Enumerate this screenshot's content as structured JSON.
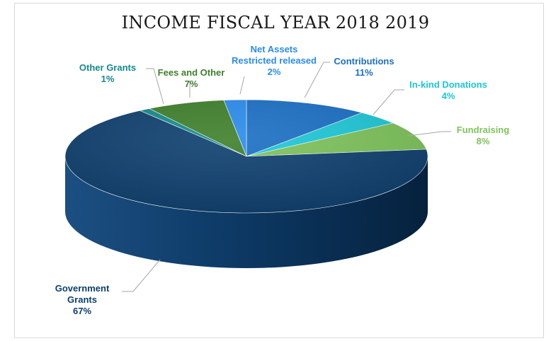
{
  "chart_data": {
    "type": "pie",
    "title": "INCOME FISCAL YEAR 2018 2019",
    "slices": [
      {
        "name": "Contributions",
        "value": 11,
        "label": "11%",
        "color": "#1a6fc4",
        "label_color": "#1a6fc4"
      },
      {
        "name": "In-kind Donations",
        "value": 4,
        "label": "4%",
        "color": "#1dc8d8",
        "label_color": "#1cc5d8"
      },
      {
        "name": "Fundraising",
        "value": 8,
        "label": "8%",
        "color": "#7dc35b",
        "label_color": "#7dc35b"
      },
      {
        "name": "Government Grants",
        "value": 67,
        "label": "67%",
        "color": "#0d3f6e",
        "label_color": "#0d3f6e"
      },
      {
        "name": "Other Grants",
        "value": 1,
        "label": "1%",
        "color": "#138a8c",
        "label_color": "#138a8c"
      },
      {
        "name": "Fees and Other",
        "value": 7,
        "label": "7%",
        "color": "#3e7f2a",
        "label_color": "#3e7f2a"
      },
      {
        "name": "Net Assets Restricted released",
        "value": 2,
        "label": "2%",
        "color": "#2a8cec",
        "label_color": "#2a8cec"
      }
    ],
    "legend": "none",
    "style": "3d-tilted"
  }
}
